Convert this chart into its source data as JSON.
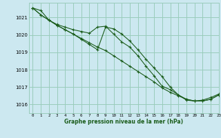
{
  "title": "Graphe pression niveau de la mer (hPa)",
  "bg_color": "#cce8f0",
  "grid_color": "#99ccbb",
  "line_color": "#1a5c1a",
  "xlim": [
    -0.5,
    23
  ],
  "ylim": [
    1015.5,
    1021.85
  ],
  "yticks": [
    1016,
    1017,
    1018,
    1019,
    1020,
    1021
  ],
  "xticks": [
    0,
    1,
    2,
    3,
    4,
    5,
    6,
    7,
    8,
    9,
    10,
    11,
    12,
    13,
    14,
    15,
    16,
    17,
    18,
    19,
    20,
    21,
    22,
    23
  ],
  "series1": [
    1021.55,
    1021.4,
    1020.85,
    1020.6,
    1020.45,
    1020.3,
    1020.2,
    1020.1,
    1020.45,
    1020.5,
    1020.05,
    1019.6,
    1019.3,
    1018.8,
    1018.2,
    1017.65,
    1017.05,
    1016.85,
    1016.55,
    1016.25,
    1016.2,
    1016.25,
    1016.4,
    1016.6
  ],
  "series2": [
    1021.55,
    1021.15,
    1020.85,
    1020.55,
    1020.3,
    1020.05,
    1019.8,
    1019.55,
    1019.3,
    1019.1,
    1018.8,
    1018.5,
    1018.2,
    1017.9,
    1017.6,
    1017.3,
    1016.95,
    1016.7,
    1016.5,
    1016.3,
    1016.2,
    1016.2,
    1016.3,
    1016.55
  ],
  "series3": [
    1021.55,
    1021.15,
    1020.85,
    1020.55,
    1020.3,
    1020.05,
    1019.75,
    1019.45,
    1019.15,
    1020.45,
    1020.35,
    1020.05,
    1019.65,
    1019.15,
    1018.6,
    1018.1,
    1017.6,
    1017.0,
    1016.55,
    1016.3,
    1016.2,
    1016.2,
    1016.3,
    1016.55
  ]
}
